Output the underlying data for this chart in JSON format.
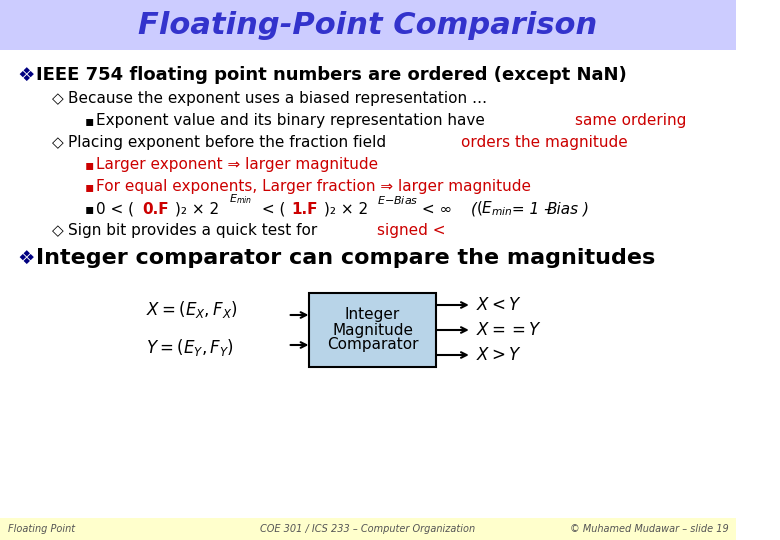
{
  "title": "Floating-Point Comparison",
  "title_color": "#3333cc",
  "title_bg": "#ccccff",
  "body_bg": "#ffffff",
  "footer_bg": "#ffffcc",
  "black": "#000000",
  "red": "#cc0000",
  "dark_red": "#990000",
  "bullet1": "IEEE 754 floating point numbers are ordered (except NaN)",
  "sub1": "Because the exponent uses a biased representation …",
  "subsub1": "Exponent value and its binary representation have ",
  "subsub1_red": "same ordering",
  "sub2_black": "Placing exponent before the fraction field ",
  "sub2_red": "orders the magnitude",
  "subsub2a_red": "Larger exponent ⇒ larger magnitude",
  "subsub2b_red": "For equal exponents, Larger fraction ⇒ larger magnitude",
  "bullet2": "Integer comparator can compare the magnitudes",
  "footer_left": "Floating Point",
  "footer_center": "COE 301 / ICS 233 – Computer Organization",
  "footer_right": "© Muhamed Mudawar – slide 19"
}
